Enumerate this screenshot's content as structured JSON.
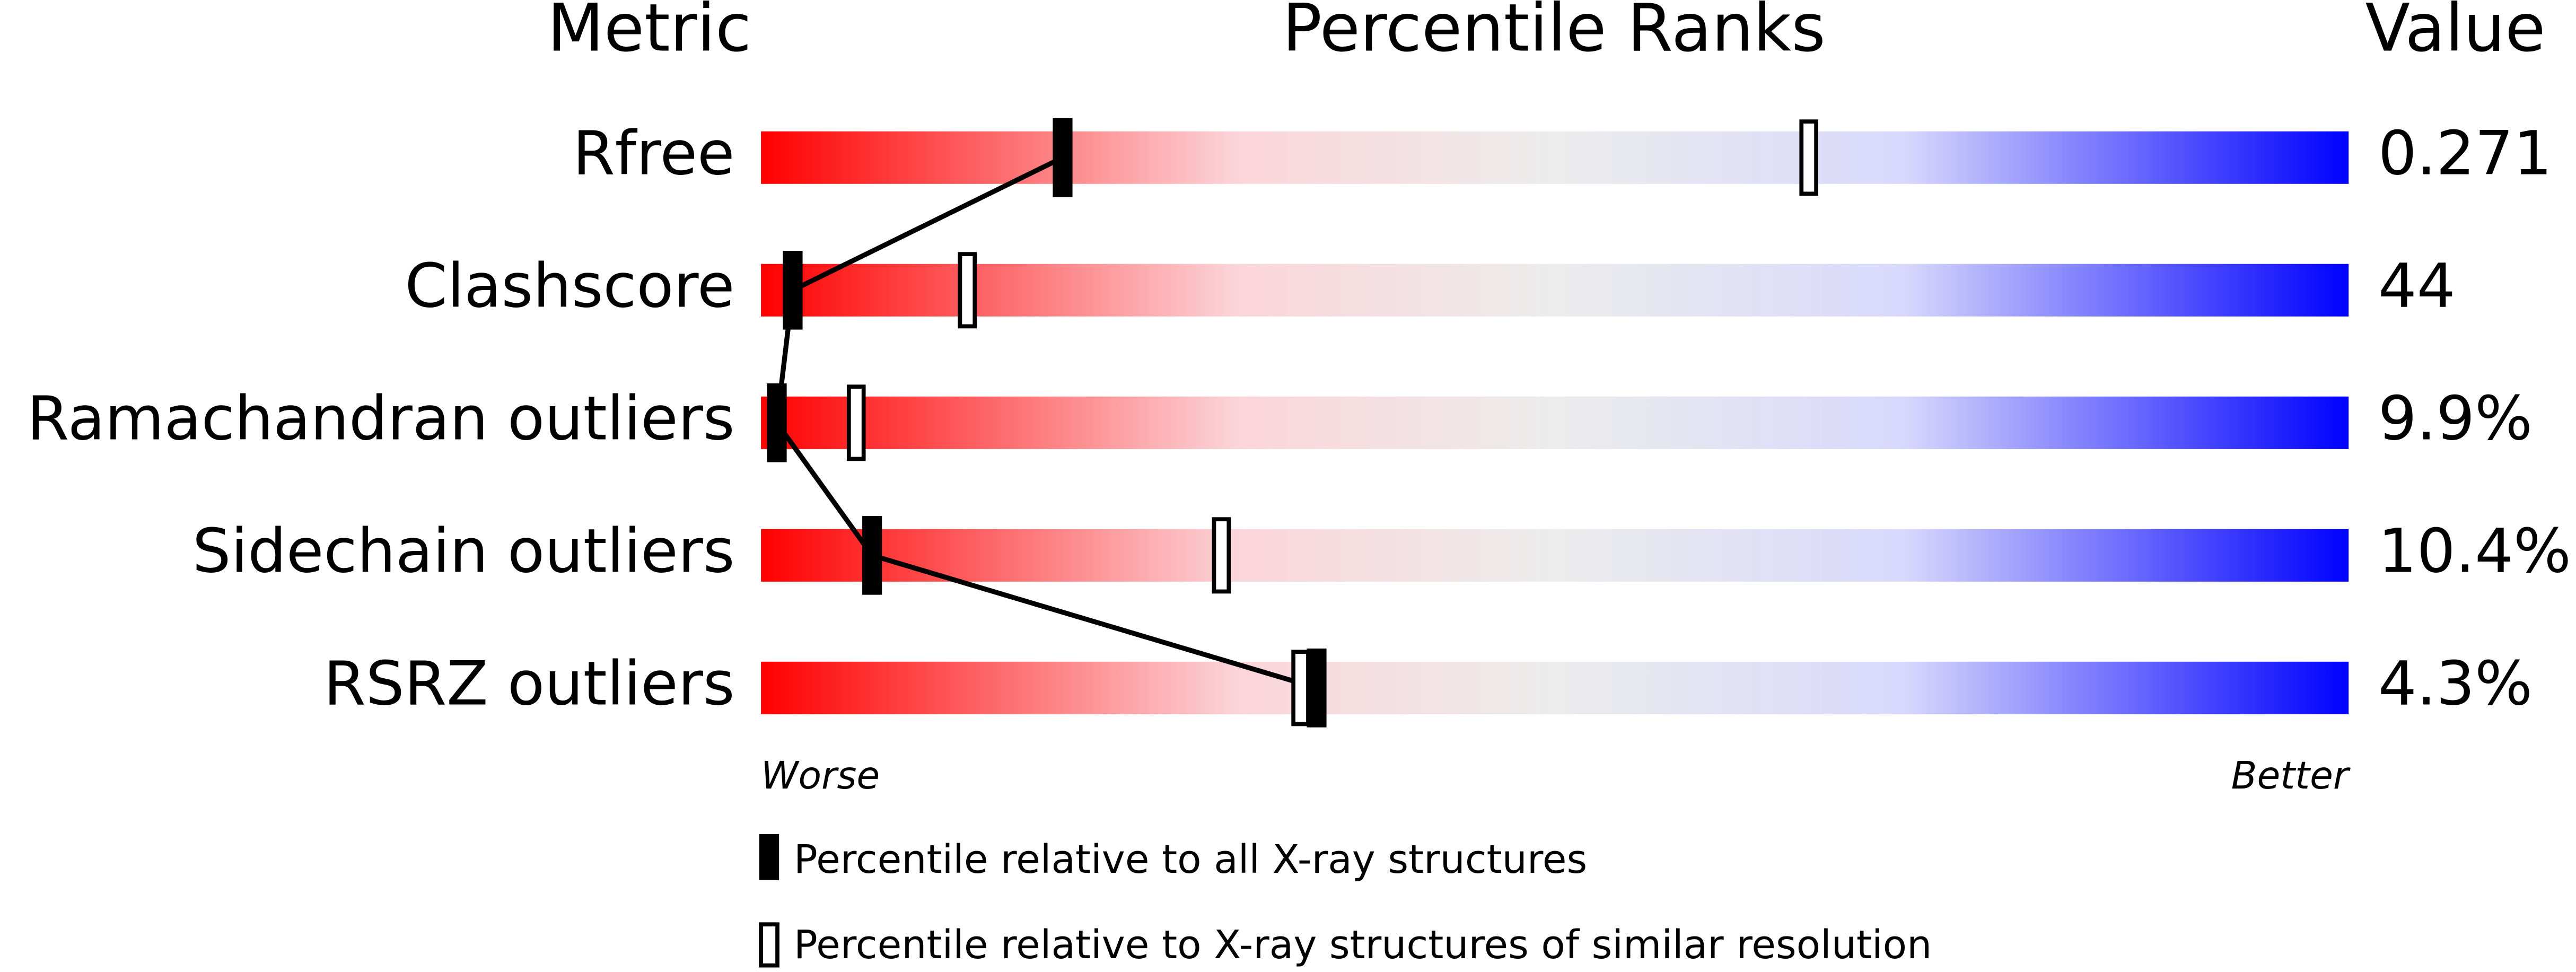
{
  "header": {
    "metric": "Metric",
    "percentile_ranks": "Percentile Ranks",
    "value": "Value"
  },
  "xlim": [
    0,
    100
  ],
  "rows": [
    {
      "metric": "Rfree",
      "value": "0.271",
      "percentile_all": 19,
      "percentile_similar": 66
    },
    {
      "metric": "Clashscore",
      "value": "44",
      "percentile_all": 2,
      "percentile_similar": 13
    },
    {
      "metric": "Ramachandran outliers",
      "value": "9.9%",
      "percentile_all": 1,
      "percentile_similar": 6
    },
    {
      "metric": "Sidechain outliers",
      "value": "10.4%",
      "percentile_all": 7,
      "percentile_similar": 29
    },
    {
      "metric": "RSRZ outliers",
      "value": "4.3%",
      "percentile_all": 35,
      "percentile_similar": 34
    }
  ],
  "scale": {
    "worse": "Worse",
    "better": "Better"
  },
  "legend": {
    "all": "Percentile relative to all X-ray structures",
    "similar": "Percentile relative to X-ray structures of similar resolution"
  }
}
